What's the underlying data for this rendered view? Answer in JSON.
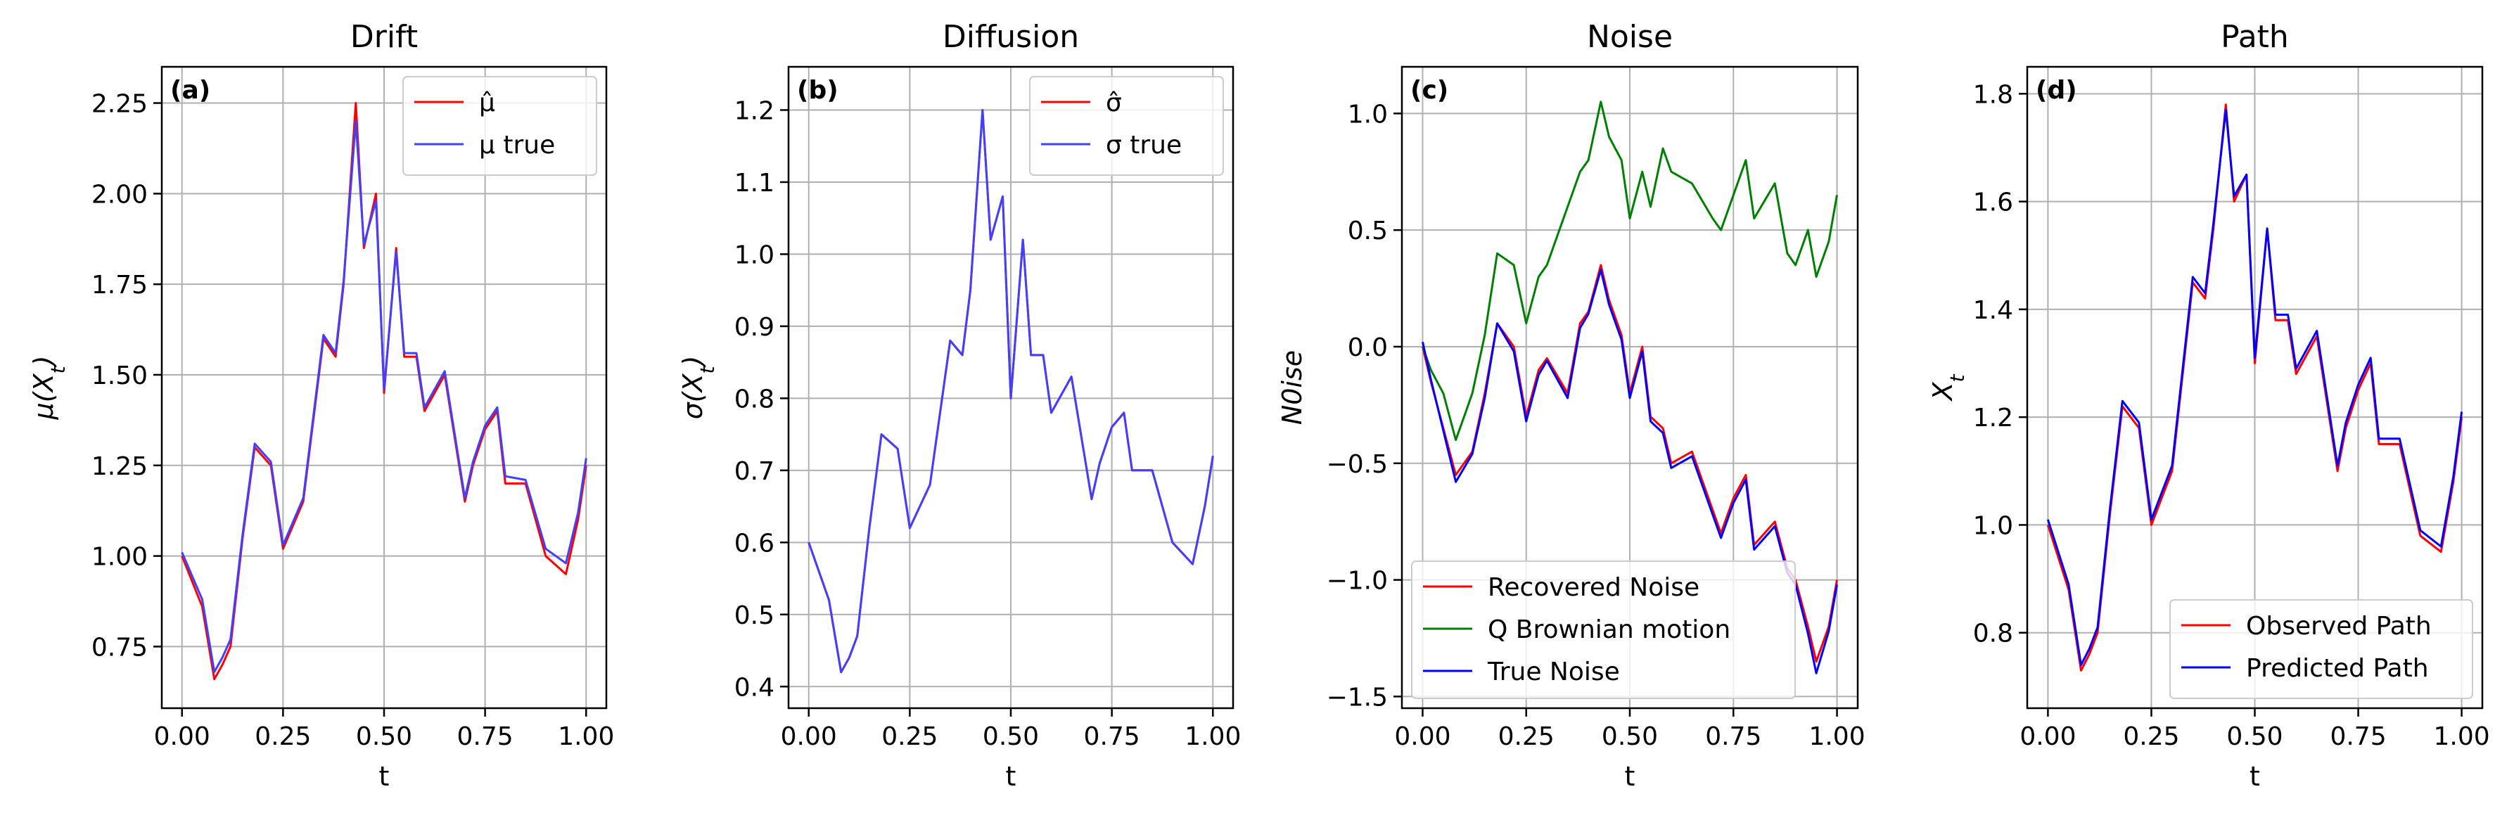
{
  "chart_data": [
    {
      "type": "line",
      "panel": "(a)",
      "title": "Drift",
      "xlabel": "t",
      "ylabel": "μ(X_t)",
      "xlim": [
        -0.05,
        1.05
      ],
      "ylim": [
        0.58,
        2.35
      ],
      "xticks": [
        0,
        0.25,
        0.5,
        0.75,
        1.0
      ],
      "xtick_labels": [
        "0.00",
        "0.25",
        "0.50",
        "0.75",
        "1.00"
      ],
      "yticks": [
        0.75,
        1.0,
        1.25,
        1.5,
        1.75,
        2.0,
        2.25
      ],
      "ytick_labels": [
        "0.75",
        "1.00",
        "1.25",
        "1.50",
        "1.75",
        "2.00",
        "2.25"
      ],
      "grid": true,
      "legend_position": "top-right",
      "x": [
        0.0,
        0.05,
        0.08,
        0.1,
        0.12,
        0.15,
        0.18,
        0.22,
        0.25,
        0.3,
        0.35,
        0.38,
        0.4,
        0.43,
        0.45,
        0.48,
        0.5,
        0.53,
        0.55,
        0.58,
        0.6,
        0.65,
        0.7,
        0.72,
        0.75,
        0.78,
        0.8,
        0.85,
        0.9,
        0.95,
        0.98,
        1.0
      ],
      "series": [
        {
          "name": "μ̂",
          "color": "#ff0000",
          "values": [
            1.0,
            0.86,
            0.66,
            0.7,
            0.75,
            1.05,
            1.3,
            1.25,
            1.02,
            1.15,
            1.6,
            1.55,
            1.75,
            2.25,
            1.85,
            2.0,
            1.45,
            1.85,
            1.55,
            1.55,
            1.4,
            1.5,
            1.15,
            1.25,
            1.35,
            1.4,
            1.2,
            1.2,
            1.0,
            0.95,
            1.1,
            1.25
          ]
        },
        {
          "name": "μ true",
          "color": "#4040ff",
          "values": [
            1.01,
            0.88,
            0.68,
            0.72,
            0.77,
            1.06,
            1.31,
            1.26,
            1.03,
            1.16,
            1.61,
            1.56,
            1.76,
            2.2,
            1.86,
            1.98,
            1.46,
            1.84,
            1.56,
            1.56,
            1.41,
            1.51,
            1.16,
            1.26,
            1.36,
            1.41,
            1.22,
            1.21,
            1.02,
            0.98,
            1.12,
            1.27
          ]
        }
      ]
    },
    {
      "type": "line",
      "panel": "(b)",
      "title": "Diffusion",
      "xlabel": "t",
      "ylabel": "σ(X_t)",
      "xlim": [
        -0.05,
        1.05
      ],
      "ylim": [
        0.37,
        1.26
      ],
      "xticks": [
        0,
        0.25,
        0.5,
        0.75,
        1.0
      ],
      "xtick_labels": [
        "0.00",
        "0.25",
        "0.50",
        "0.75",
        "1.00"
      ],
      "yticks": [
        0.4,
        0.5,
        0.6,
        0.7,
        0.8,
        0.9,
        1.0,
        1.1,
        1.2
      ],
      "ytick_labels": [
        "0.4",
        "0.5",
        "0.6",
        "0.7",
        "0.8",
        "0.9",
        "1.0",
        "1.1",
        "1.2"
      ],
      "grid": true,
      "legend_position": "top-right",
      "x": [
        0.0,
        0.05,
        0.08,
        0.1,
        0.12,
        0.15,
        0.18,
        0.22,
        0.25,
        0.3,
        0.35,
        0.38,
        0.4,
        0.43,
        0.45,
        0.48,
        0.5,
        0.53,
        0.55,
        0.58,
        0.6,
        0.65,
        0.7,
        0.72,
        0.75,
        0.78,
        0.8,
        0.85,
        0.9,
        0.95,
        0.98,
        1.0
      ],
      "series": [
        {
          "name": "σ̂",
          "color": "#ff0000",
          "values": [
            0.6,
            0.52,
            0.42,
            0.44,
            0.47,
            0.62,
            0.75,
            0.73,
            0.62,
            0.68,
            0.88,
            0.86,
            0.95,
            1.2,
            1.02,
            1.08,
            0.8,
            1.02,
            0.86,
            0.86,
            0.78,
            0.83,
            0.66,
            0.71,
            0.76,
            0.78,
            0.7,
            0.7,
            0.6,
            0.57,
            0.65,
            0.72
          ]
        },
        {
          "name": "σ true",
          "color": "#4040ff",
          "values": [
            0.6,
            0.52,
            0.42,
            0.44,
            0.47,
            0.62,
            0.75,
            0.73,
            0.62,
            0.68,
            0.88,
            0.86,
            0.95,
            1.2,
            1.02,
            1.08,
            0.8,
            1.02,
            0.86,
            0.86,
            0.78,
            0.83,
            0.66,
            0.71,
            0.76,
            0.78,
            0.7,
            0.7,
            0.6,
            0.57,
            0.65,
            0.72
          ]
        }
      ]
    },
    {
      "type": "line",
      "panel": "(c)",
      "title": "Noise",
      "xlabel": "t",
      "ylabel": "N0ise",
      "xlim": [
        -0.05,
        1.05
      ],
      "ylim": [
        -1.55,
        1.2
      ],
      "xticks": [
        0,
        0.25,
        0.5,
        0.75,
        1.0
      ],
      "xtick_labels": [
        "0.00",
        "0.25",
        "0.50",
        "0.75",
        "1.00"
      ],
      "yticks": [
        -1.5,
        -1.0,
        -0.5,
        0.0,
        0.5,
        1.0
      ],
      "ytick_labels": [
        "−1.5",
        "−1.0",
        "−0.5",
        "0.0",
        "0.5",
        "1.0"
      ],
      "grid": true,
      "legend_position": "bottom-left",
      "x": [
        0.0,
        0.02,
        0.05,
        0.08,
        0.1,
        0.12,
        0.15,
        0.18,
        0.22,
        0.25,
        0.28,
        0.3,
        0.35,
        0.38,
        0.4,
        0.43,
        0.45,
        0.48,
        0.5,
        0.53,
        0.55,
        0.58,
        0.6,
        0.65,
        0.7,
        0.72,
        0.75,
        0.78,
        0.8,
        0.85,
        0.88,
        0.9,
        0.93,
        0.95,
        0.98,
        1.0
      ],
      "series": [
        {
          "name": "Recovered Noise",
          "color": "#ff0000",
          "values": [
            0.0,
            -0.15,
            -0.35,
            -0.55,
            -0.5,
            -0.45,
            -0.2,
            0.1,
            0.0,
            -0.3,
            -0.1,
            -0.05,
            -0.2,
            0.1,
            0.15,
            0.35,
            0.2,
            0.05,
            -0.2,
            0.0,
            -0.3,
            -0.35,
            -0.5,
            -0.45,
            -0.7,
            -0.8,
            -0.65,
            -0.55,
            -0.85,
            -0.75,
            -0.95,
            -1.0,
            -1.2,
            -1.35,
            -1.2,
            -1.0
          ]
        },
        {
          "name": "Q Brownian motion",
          "color": "#008000",
          "values": [
            0.0,
            -0.1,
            -0.2,
            -0.4,
            -0.3,
            -0.2,
            0.05,
            0.4,
            0.35,
            0.1,
            0.3,
            0.35,
            0.6,
            0.75,
            0.8,
            1.05,
            0.9,
            0.8,
            0.55,
            0.75,
            0.6,
            0.85,
            0.75,
            0.7,
            0.55,
            0.5,
            0.65,
            0.8,
            0.55,
            0.7,
            0.4,
            0.35,
            0.5,
            0.3,
            0.45,
            0.65
          ]
        },
        {
          "name": "True Noise",
          "color": "#0000ff",
          "values": [
            0.02,
            -0.14,
            -0.36,
            -0.58,
            -0.52,
            -0.46,
            -0.22,
            0.1,
            -0.02,
            -0.32,
            -0.12,
            -0.06,
            -0.22,
            0.08,
            0.14,
            0.33,
            0.18,
            0.03,
            -0.22,
            -0.02,
            -0.32,
            -0.37,
            -0.52,
            -0.47,
            -0.72,
            -0.82,
            -0.67,
            -0.57,
            -0.87,
            -0.77,
            -0.97,
            -1.02,
            -1.23,
            -1.4,
            -1.22,
            -1.02
          ]
        }
      ]
    },
    {
      "type": "line",
      "panel": "(d)",
      "title": "Path",
      "xlabel": "t",
      "ylabel": "X_t",
      "xlim": [
        -0.05,
        1.05
      ],
      "ylim": [
        0.66,
        1.85
      ],
      "xticks": [
        0,
        0.25,
        0.5,
        0.75,
        1.0
      ],
      "xtick_labels": [
        "0.00",
        "0.25",
        "0.50",
        "0.75",
        "1.00"
      ],
      "yticks": [
        0.8,
        1.0,
        1.2,
        1.4,
        1.6,
        1.8
      ],
      "ytick_labels": [
        "0.8",
        "1.0",
        "1.2",
        "1.4",
        "1.6",
        "1.8"
      ],
      "grid": true,
      "legend_position": "bottom-right",
      "x": [
        0.0,
        0.05,
        0.08,
        0.1,
        0.12,
        0.15,
        0.18,
        0.22,
        0.25,
        0.3,
        0.35,
        0.38,
        0.4,
        0.43,
        0.45,
        0.48,
        0.5,
        0.53,
        0.55,
        0.58,
        0.6,
        0.65,
        0.7,
        0.72,
        0.75,
        0.78,
        0.8,
        0.85,
        0.9,
        0.95,
        0.98,
        1.0
      ],
      "series": [
        {
          "name": "Observed Path",
          "color": "#ff0000",
          "values": [
            1.0,
            0.88,
            0.73,
            0.76,
            0.8,
            1.02,
            1.22,
            1.18,
            1.0,
            1.1,
            1.45,
            1.42,
            1.55,
            1.78,
            1.6,
            1.65,
            1.3,
            1.55,
            1.38,
            1.38,
            1.28,
            1.35,
            1.1,
            1.18,
            1.25,
            1.3,
            1.15,
            1.15,
            0.98,
            0.95,
            1.08,
            1.2
          ]
        },
        {
          "name": "Predicted Path",
          "color": "#0000ff",
          "values": [
            1.01,
            0.89,
            0.74,
            0.77,
            0.81,
            1.03,
            1.23,
            1.19,
            1.01,
            1.11,
            1.46,
            1.43,
            1.56,
            1.77,
            1.61,
            1.65,
            1.31,
            1.55,
            1.39,
            1.39,
            1.29,
            1.36,
            1.11,
            1.19,
            1.26,
            1.31,
            1.16,
            1.16,
            0.99,
            0.96,
            1.09,
            1.21
          ]
        }
      ]
    }
  ]
}
